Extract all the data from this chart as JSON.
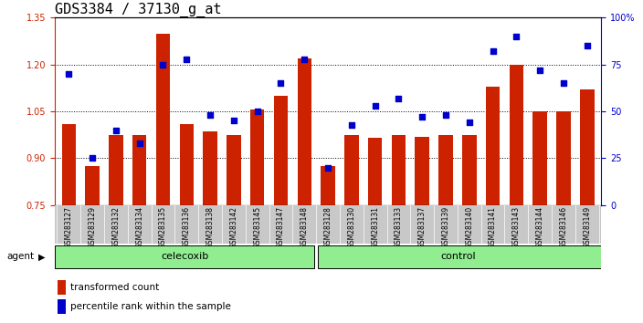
{
  "title": "GDS3384 / 37130_g_at",
  "categories": [
    "GSM283127",
    "GSM283129",
    "GSM283132",
    "GSM283134",
    "GSM283135",
    "GSM283136",
    "GSM283138",
    "GSM283142",
    "GSM283145",
    "GSM283147",
    "GSM283148",
    "GSM283128",
    "GSM283130",
    "GSM283131",
    "GSM283133",
    "GSM283137",
    "GSM283139",
    "GSM283140",
    "GSM283141",
    "GSM283143",
    "GSM283144",
    "GSM283146",
    "GSM283149"
  ],
  "bar_values": [
    1.01,
    0.875,
    0.975,
    0.975,
    1.3,
    1.01,
    0.985,
    0.975,
    1.055,
    1.1,
    1.22,
    0.875,
    0.975,
    0.965,
    0.975,
    0.97,
    0.975,
    0.975,
    1.13,
    1.2,
    1.05,
    1.05,
    1.12
  ],
  "dot_values_pct": [
    70,
    25,
    40,
    33,
    75,
    78,
    48,
    45,
    50,
    65,
    78,
    20,
    43,
    53,
    57,
    47,
    48,
    44,
    82,
    90,
    72,
    65,
    85
  ],
  "group_labels": [
    "celecoxib",
    "control"
  ],
  "group_sizes": [
    11,
    12
  ],
  "bar_color": "#CC2200",
  "dot_color": "#0000CC",
  "ylim_left": [
    0.75,
    1.35
  ],
  "ylim_right": [
    0,
    100
  ],
  "yticks_left": [
    0.75,
    0.9,
    1.05,
    1.2,
    1.35
  ],
  "yticks_right": [
    0,
    25,
    50,
    75,
    100
  ],
  "ytick_labels_right": [
    "0",
    "25",
    "50",
    "75",
    "100%"
  ],
  "legend_items": [
    "transformed count",
    "percentile rank within the sample"
  ],
  "agent_label": "agent",
  "tick_label_area_color": "#C8C8C8",
  "green_color": "#90EE90",
  "title_fontsize": 11,
  "axis_fontsize": 7,
  "bar_width": 0.6
}
